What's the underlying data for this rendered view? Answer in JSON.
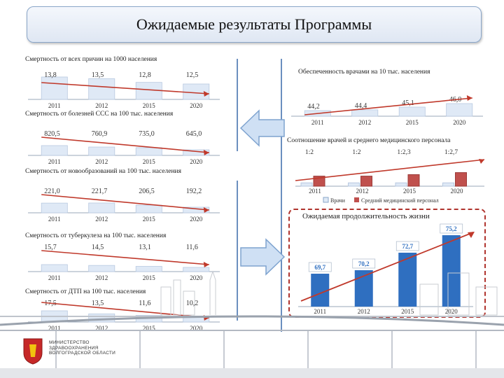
{
  "title": "Ожидаемые результаты Программы",
  "footer": {
    "line1": "МИНИСТЕРСТВО",
    "line2": "ЗДРАВООХРАНЕНИЯ",
    "line3": "ВОЛГОГРАДСКОЙ ОБЛАСТИ"
  },
  "colors": {
    "bar": "#2f6fc0",
    "bar_light": "#dfe9f6",
    "bar_red": "#c0504d",
    "trend": "#c0392b",
    "frame": "#6b8fbf"
  },
  "chart_data": [
    {
      "type": "bar",
      "title": "Смертность от всех причин на 1000 населения",
      "categories": [
        "2011",
        "2012",
        "2015",
        "2020"
      ],
      "values": [
        13.8,
        13.5,
        12.8,
        12.5
      ],
      "labels": [
        "13,8",
        "13,5",
        "12,8",
        "12,5"
      ]
    },
    {
      "type": "bar",
      "title": "Смертность от болезней ССС на 100 тыс. населения",
      "categories": [
        "2011",
        "2012",
        "2015",
        "2020"
      ],
      "values": [
        820.5,
        760.9,
        735.0,
        645.0
      ],
      "labels": [
        "820,5",
        "760,9",
        "735,0",
        "645,0"
      ]
    },
    {
      "type": "bar",
      "title": "Смертность от новообразований на 100 тыс. населения",
      "categories": [
        "2011",
        "2012",
        "2015",
        "2020"
      ],
      "values": [
        221.0,
        221.7,
        206.5,
        192.2
      ],
      "labels": [
        "221,0",
        "221,7",
        "206,5",
        "192,2"
      ]
    },
    {
      "type": "bar",
      "title": "Смертность от туберкулеза на 100 тыс. населения",
      "categories": [
        "2011",
        "2012",
        "2015",
        "2020"
      ],
      "values": [
        15.7,
        14.5,
        13.1,
        11.6
      ],
      "labels": [
        "15,7",
        "14,5",
        "13,1",
        "11,6"
      ]
    },
    {
      "type": "bar",
      "title": "Смертность от ДТП на 100 тыс. населения",
      "categories": [
        "2011",
        "2012",
        "2015",
        "2020"
      ],
      "values": [
        17.5,
        13.5,
        11.6,
        10.2
      ],
      "labels": [
        "17,5",
        "13,5",
        "11,6",
        "10,2"
      ]
    },
    {
      "type": "bar",
      "title": "Обеспеченность врачами на 10 тыс. населения",
      "categories": [
        "2011",
        "2012",
        "2015",
        "2020"
      ],
      "values": [
        44.2,
        44.4,
        45.1,
        46.0
      ],
      "labels": [
        "44,2",
        "44,4",
        "45,1",
        "46,0"
      ]
    },
    {
      "type": "bar",
      "title": "Соотношение врачей и среднего медицинского персонала",
      "categories": [
        "2011",
        "2012",
        "2015",
        "2020"
      ],
      "series": [
        {
          "name": "Врачи",
          "values": [
            1,
            1,
            1,
            1
          ]
        },
        {
          "name": "Средний медицинский персонал",
          "values": [
            2,
            2,
            2.3,
            2.7
          ]
        }
      ],
      "labels": [
        "1:2",
        "1:2",
        "1:2,3",
        "1:2,7"
      ]
    },
    {
      "type": "bar",
      "title": "Ожидаемая продолжительность жизни",
      "categories": [
        "2011",
        "2012",
        "2015",
        "2020"
      ],
      "values": [
        69.7,
        70.2,
        72.7,
        75.2
      ],
      "labels": [
        "69,7",
        "70,2",
        "72,7",
        "75,2"
      ]
    }
  ]
}
